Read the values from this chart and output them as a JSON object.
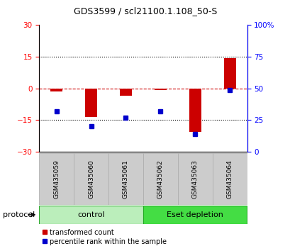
{
  "title": "GDS3599 / scl21100.1.108_50-S",
  "samples": [
    "GSM435059",
    "GSM435060",
    "GSM435061",
    "GSM435062",
    "GSM435063",
    "GSM435064"
  ],
  "transformed_count": [
    -1.5,
    -13.5,
    -3.5,
    -0.8,
    -20.5,
    14.5
  ],
  "percentile_rank": [
    32,
    20,
    27,
    32,
    14,
    49
  ],
  "ylim_left": [
    -30,
    30
  ],
  "ylim_right": [
    0,
    100
  ],
  "yticks_left": [
    -30,
    -15,
    0,
    15,
    30
  ],
  "yticks_right": [
    0,
    25,
    50,
    75,
    100
  ],
  "ytick_labels_right": [
    "0",
    "25",
    "50",
    "75",
    "100%"
  ],
  "hlines_dotted": [
    15,
    -15
  ],
  "hline_dashed": 0,
  "bar_color": "#cc0000",
  "dot_color": "#0000cc",
  "zero_line_color": "#cc0000",
  "grid_line_color": "#000000",
  "group1_label": "control",
  "group1_color": "#bbeebb",
  "group2_label": "Eset depletion",
  "group2_color": "#44dd44",
  "legend_label_red": "transformed count",
  "legend_label_blue": "percentile rank within the sample",
  "protocol_label": "protocol",
  "bar_width": 0.35,
  "left_tick_color": "red",
  "right_tick_color": "blue",
  "bg_color": "white",
  "sample_box_color": "#cccccc",
  "sample_box_edge": "#aaaaaa"
}
